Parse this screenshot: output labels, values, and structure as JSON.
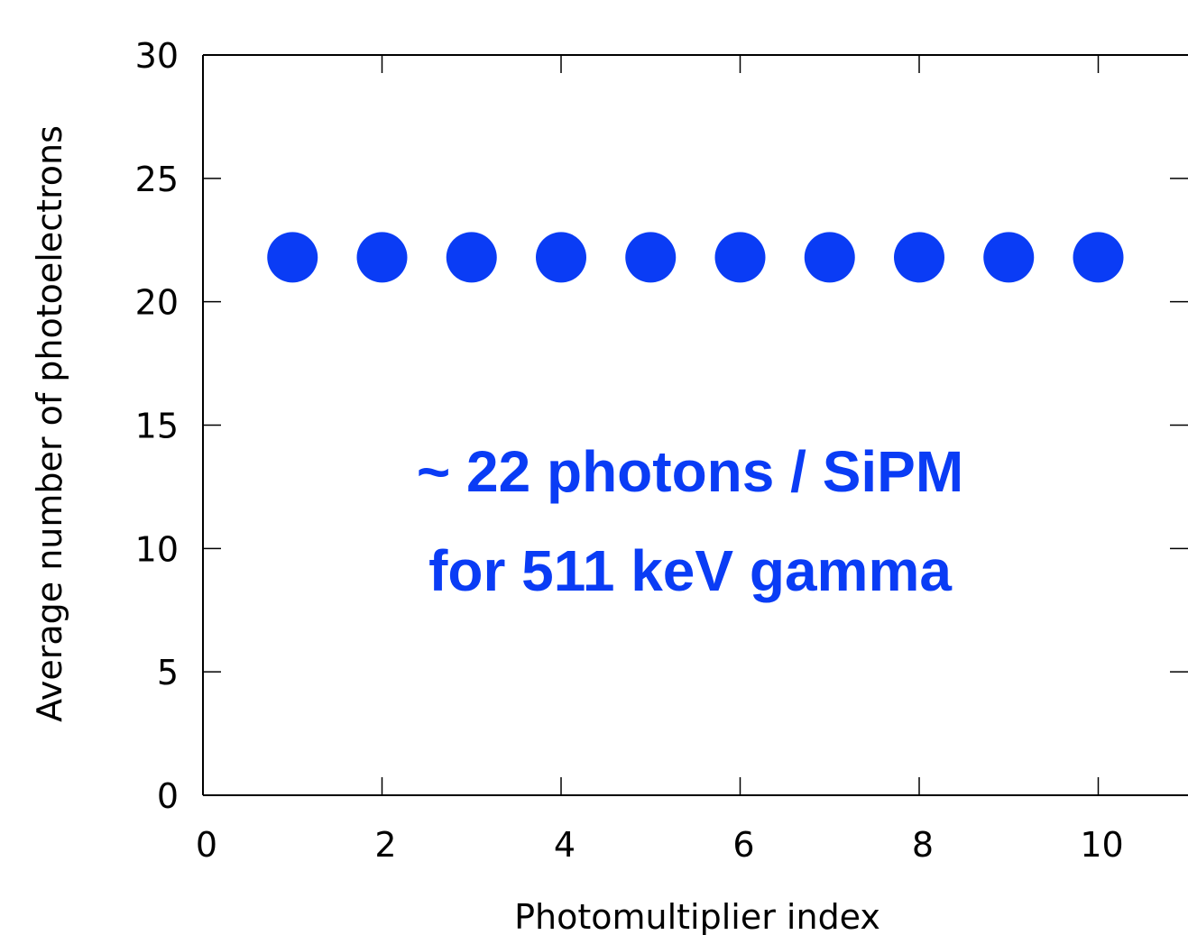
{
  "chart_data": {
    "type": "scatter",
    "xlabel": "Photomultiplier index",
    "ylabel": "Average number of photoelectrons",
    "xlim": [
      0,
      10.5
    ],
    "ylim": [
      0,
      30
    ],
    "x_ticks": [
      0,
      2,
      4,
      6,
      8,
      10
    ],
    "y_ticks": [
      0,
      5,
      10,
      15,
      20,
      25,
      30
    ],
    "x_tick_labels": [
      "0",
      "2",
      "4",
      "6",
      "8",
      "10"
    ],
    "y_tick_labels": [
      "0",
      "5",
      "10",
      "15",
      "20",
      "25",
      "30"
    ],
    "grid": false,
    "points": [
      {
        "x": 1,
        "y": 21.8
      },
      {
        "x": 2,
        "y": 21.8
      },
      {
        "x": 3,
        "y": 21.8
      },
      {
        "x": 4,
        "y": 21.8
      },
      {
        "x": 5,
        "y": 21.8
      },
      {
        "x": 6,
        "y": 21.8
      },
      {
        "x": 7,
        "y": 21.8
      },
      {
        "x": 8,
        "y": 21.8
      },
      {
        "x": 9,
        "y": 21.8
      },
      {
        "x": 10,
        "y": 21.8
      }
    ],
    "marker_color": "#0a3cf5",
    "annotation": {
      "lines": [
        "~ 22 photons / SiPM",
        "for 511 keV gamma"
      ],
      "color": "#0a3cf5"
    }
  }
}
